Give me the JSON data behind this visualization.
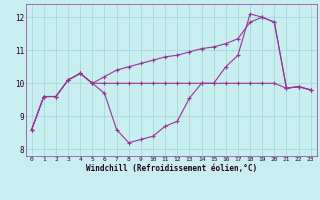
{
  "background_color": "#c8eef0",
  "grid_color": "#a0d4d8",
  "line_color": "#993399",
  "x": [
    0,
    1,
    2,
    3,
    4,
    5,
    6,
    7,
    8,
    9,
    10,
    11,
    12,
    13,
    14,
    15,
    16,
    17,
    18,
    19,
    20,
    21,
    22,
    23
  ],
  "line1": [
    8.6,
    9.6,
    9.6,
    10.1,
    10.3,
    10.0,
    9.7,
    8.6,
    8.2,
    8.3,
    8.4,
    8.7,
    8.85,
    9.55,
    10.0,
    10.0,
    10.5,
    10.85,
    12.1,
    12.0,
    11.85,
    9.85,
    9.9,
    9.8
  ],
  "line2": [
    8.6,
    9.6,
    9.6,
    10.1,
    10.3,
    10.0,
    10.2,
    10.4,
    10.5,
    10.6,
    10.7,
    10.8,
    10.85,
    10.95,
    11.05,
    11.1,
    11.2,
    11.35,
    11.85,
    12.0,
    11.85,
    9.85,
    9.9,
    9.8
  ],
  "line3": [
    8.6,
    9.6,
    9.6,
    10.1,
    10.3,
    10.0,
    10.0,
    10.0,
    10.0,
    10.0,
    10.0,
    10.0,
    10.0,
    10.0,
    10.0,
    10.0,
    10.0,
    10.0,
    10.0,
    10.0,
    10.0,
    9.85,
    9.9,
    9.8
  ],
  "xlabel": "Windchill (Refroidissement éolien,°C)",
  "ylim": [
    7.8,
    12.4
  ],
  "yticks": [
    8,
    9,
    10,
    11,
    12
  ],
  "xticks": [
    0,
    1,
    2,
    3,
    4,
    5,
    6,
    7,
    8,
    9,
    10,
    11,
    12,
    13,
    14,
    15,
    16,
    17,
    18,
    19,
    20,
    21,
    22,
    23
  ]
}
